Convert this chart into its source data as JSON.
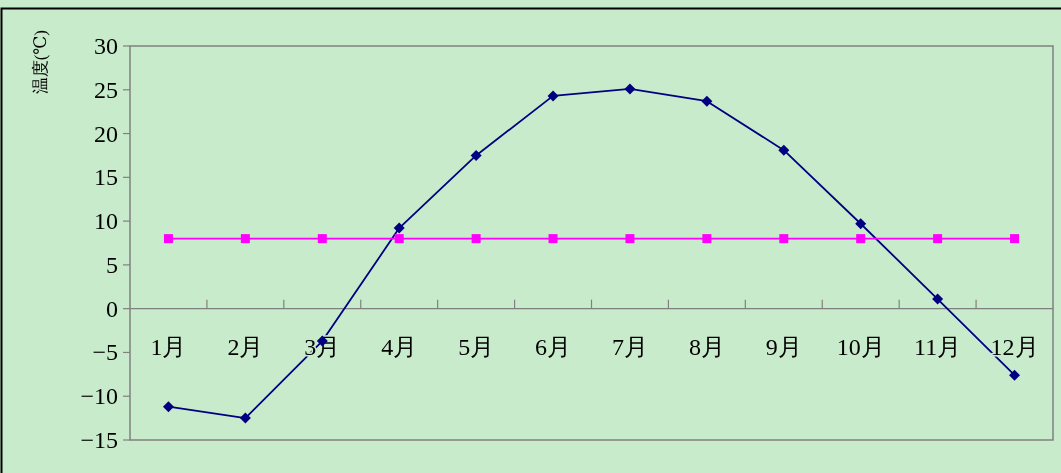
{
  "chart_data": {
    "type": "line",
    "ylabel": "温度(℃)",
    "categories": [
      "1月",
      "2月",
      "3月",
      "4月",
      "5月",
      "6月",
      "7月",
      "8月",
      "9月",
      "10月",
      "11月",
      "12月"
    ],
    "series": [
      {
        "color": "#000080",
        "marker": "diamond",
        "values": [
          -11.2,
          -12.5,
          -3.7,
          9.2,
          17.5,
          24.3,
          25.1,
          23.7,
          18.1,
          9.7,
          1.1,
          -7.6
        ]
      },
      {
        "color": "#ff00ff",
        "marker": "square",
        "values": [
          8,
          8,
          8,
          8,
          8,
          8,
          8,
          8,
          8,
          8,
          8,
          8
        ]
      }
    ],
    "ylim": [
      -15,
      30
    ],
    "yticks": [
      -15,
      -10,
      -5,
      0,
      5,
      10,
      15,
      20,
      25,
      30
    ]
  }
}
